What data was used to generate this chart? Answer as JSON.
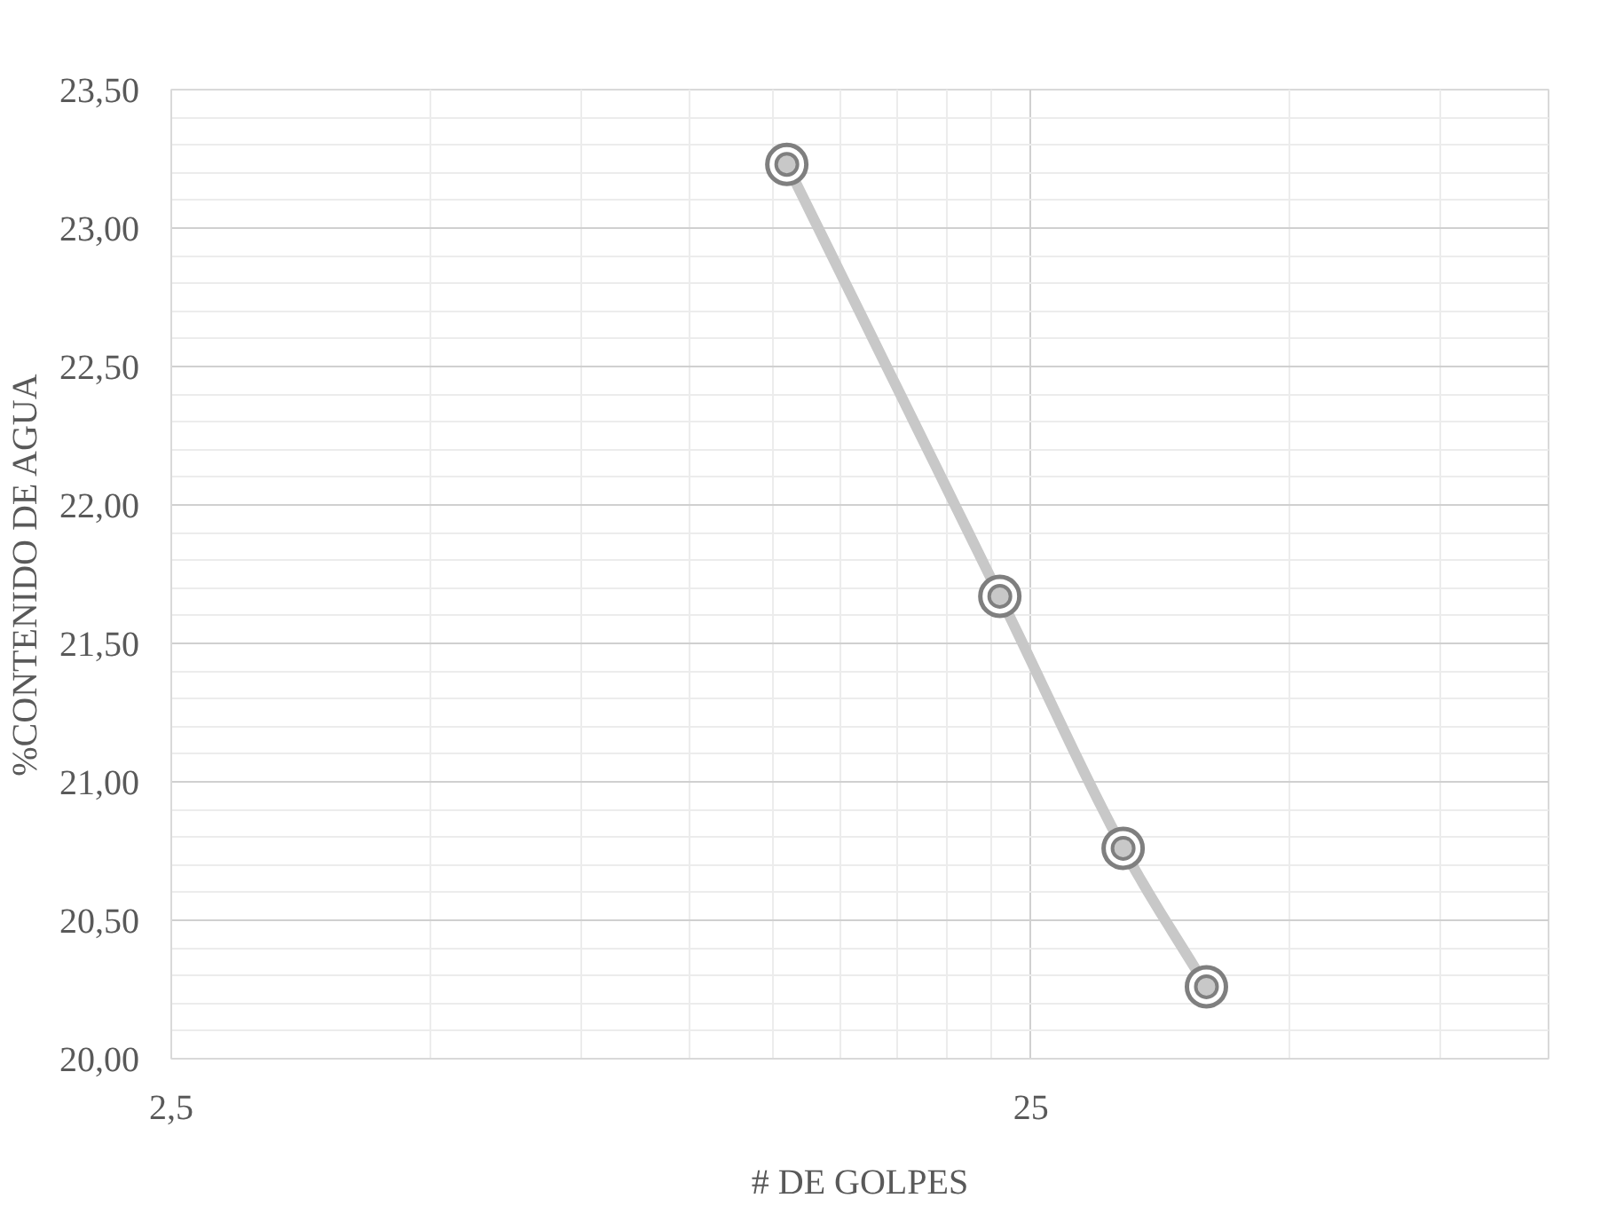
{
  "chart_data": {
    "type": "line",
    "xlabel": "# DE GOLPES",
    "ylabel": "%CONTENIDO DE AGUA",
    "log": "x",
    "x": [
      13,
      23,
      32,
      40
    ],
    "series": [
      {
        "color": "#c8c8c8",
        "values": [
          23.23,
          21.67,
          20.76,
          20.26
        ]
      }
    ],
    "marker": "circle",
    "line_style": "solid",
    "grid": true,
    "xlim": [
      2.5,
      100
    ],
    "xticks": [
      {
        "value": 2.5,
        "label": "2,5"
      },
      25
    ],
    "ylim": [
      20,
      23.5
    ],
    "yticks": [
      {
        "value": 20,
        "label": "20,00"
      },
      {
        "value": 20.5,
        "label": "20,50"
      },
      {
        "value": 21,
        "label": "21,00"
      },
      {
        "value": 21.5,
        "label": "21,50"
      },
      {
        "value": 22,
        "label": "22,00"
      },
      {
        "value": 22.5,
        "label": "22,50"
      },
      {
        "value": 23,
        "label": "23,00"
      },
      {
        "value": 23.5,
        "label": "23,50"
      }
    ]
  }
}
